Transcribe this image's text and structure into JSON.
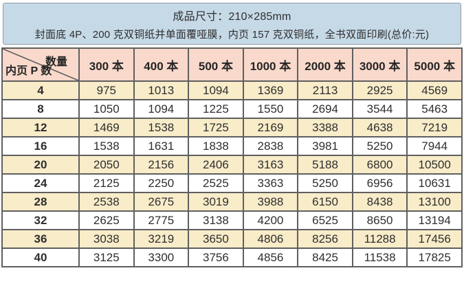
{
  "header": {
    "line1": "成品尺寸：210×285mm",
    "line2": "封面底 4P、200 克双铜纸并单面覆哑膜，内页 157 克双铜纸，全书双面印刷(总价:元)"
  },
  "table": {
    "corner_top": "数量",
    "corner_bottom": "内页 P 数",
    "columns": [
      "300 本",
      "400 本",
      "500 本",
      "1000 本",
      "2000 本",
      "3000 本",
      "5000 本"
    ],
    "rows": [
      {
        "label": "4",
        "values": [
          "975",
          "1013",
          "1094",
          "1369",
          "2113",
          "2925",
          "4569"
        ]
      },
      {
        "label": "8",
        "values": [
          "1050",
          "1094",
          "1225",
          "1550",
          "2694",
          "3544",
          "5463"
        ]
      },
      {
        "label": "12",
        "values": [
          "1469",
          "1538",
          "1725",
          "2169",
          "3388",
          "4638",
          "7219"
        ]
      },
      {
        "label": "16",
        "values": [
          "1538",
          "1631",
          "1838",
          "2838",
          "3981",
          "5250",
          "7944"
        ]
      },
      {
        "label": "20",
        "values": [
          "2050",
          "2156",
          "2406",
          "3163",
          "5188",
          "6800",
          "10500"
        ]
      },
      {
        "label": "24",
        "values": [
          "2125",
          "2250",
          "2525",
          "3363",
          "5250",
          "6956",
          "10631"
        ]
      },
      {
        "label": "28",
        "values": [
          "2538",
          "2675",
          "3019",
          "3988",
          "6150",
          "8438",
          "13100"
        ]
      },
      {
        "label": "32",
        "values": [
          "2625",
          "2775",
          "3138",
          "4200",
          "6525",
          "8650",
          "13194"
        ]
      },
      {
        "label": "36",
        "values": [
          "3038",
          "3219",
          "3650",
          "4806",
          "8256",
          "11288",
          "17456"
        ]
      },
      {
        "label": "40",
        "values": [
          "3125",
          "3300",
          "3756",
          "4856",
          "8425",
          "11538",
          "17825"
        ]
      }
    ]
  },
  "colors": {
    "band_bg": "#c6d9e7",
    "band_border": "#8f9ca6",
    "header_bg": "#f9d9cb",
    "row_alt_bg": "#f8ecc9",
    "row_bg": "#ffffff",
    "grid": "#5f5f5f",
    "text": "#2e2e2e"
  }
}
